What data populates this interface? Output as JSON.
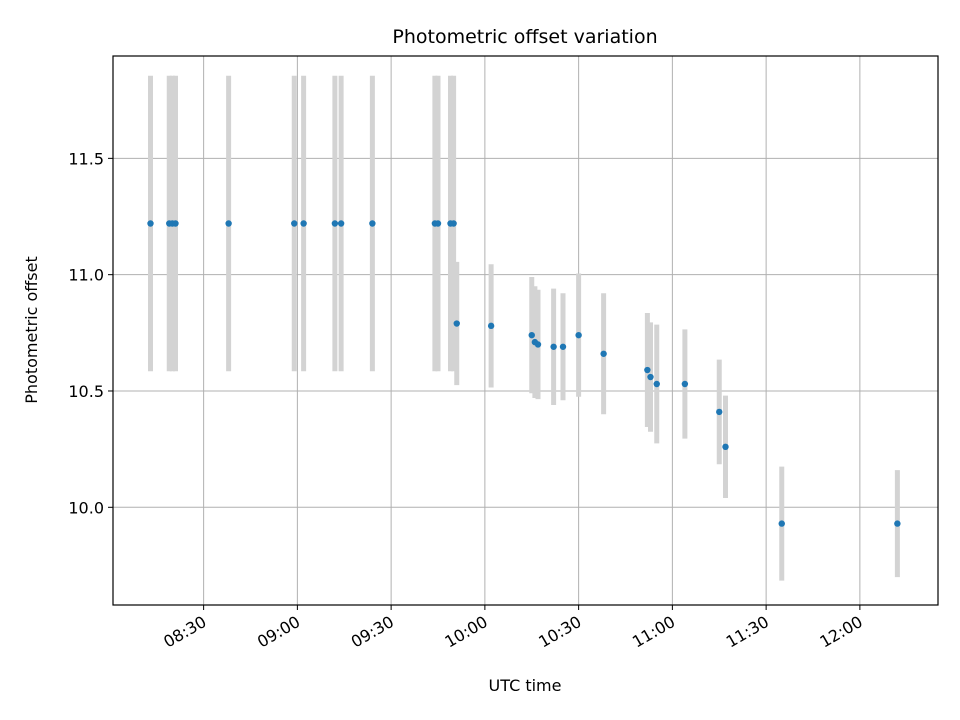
{
  "chart_data": {
    "type": "scatter",
    "title": "Photometric offset variation",
    "xlabel": "UTC time",
    "ylabel": "Photometric offset",
    "x_axis": {
      "kind": "time",
      "range": [
        "08:01",
        "12:25"
      ],
      "ticks": [
        "08:30",
        "09:00",
        "09:30",
        "10:00",
        "10:30",
        "11:00",
        "11:30",
        "12:00"
      ],
      "tick_rotation_deg": 30
    },
    "y_axis": {
      "range": [
        9.58,
        11.94
      ],
      "ticks": [
        10.0,
        10.5,
        11.0,
        11.5
      ],
      "tick_labels": [
        "10.0",
        "10.5",
        "11.0",
        "11.5"
      ]
    },
    "grid": true,
    "colors": {
      "points": "#1f77b4",
      "error_bars": "#d3d3d3",
      "grid": "#b0b0b0"
    },
    "series": [
      {
        "points": [
          {
            "x": "08:13",
            "y": 11.22,
            "err": 0.635
          },
          {
            "x": "08:19",
            "y": 11.22,
            "err": 0.635
          },
          {
            "x": "08:20",
            "y": 11.22,
            "err": 0.635
          },
          {
            "x": "08:21",
            "y": 11.22,
            "err": 0.635
          },
          {
            "x": "08:38",
            "y": 11.22,
            "err": 0.635
          },
          {
            "x": "08:59",
            "y": 11.22,
            "err": 0.635
          },
          {
            "x": "09:02",
            "y": 11.22,
            "err": 0.635
          },
          {
            "x": "09:12",
            "y": 11.22,
            "err": 0.635
          },
          {
            "x": "09:14",
            "y": 11.22,
            "err": 0.635
          },
          {
            "x": "09:24",
            "y": 11.22,
            "err": 0.635
          },
          {
            "x": "09:44",
            "y": 11.22,
            "err": 0.635
          },
          {
            "x": "09:45",
            "y": 11.22,
            "err": 0.635
          },
          {
            "x": "09:49",
            "y": 11.22,
            "err": 0.635
          },
          {
            "x": "09:50",
            "y": 11.22,
            "err": 0.635
          },
          {
            "x": "09:51",
            "y": 10.79,
            "err": 0.265
          },
          {
            "x": "10:02",
            "y": 10.78,
            "err": 0.265
          },
          {
            "x": "10:15",
            "y": 10.74,
            "err": 0.25
          },
          {
            "x": "10:16",
            "y": 10.71,
            "err": 0.24
          },
          {
            "x": "10:17",
            "y": 10.7,
            "err": 0.235
          },
          {
            "x": "10:22",
            "y": 10.69,
            "err": 0.25
          },
          {
            "x": "10:25",
            "y": 10.69,
            "err": 0.23
          },
          {
            "x": "10:30",
            "y": 10.74,
            "err": 0.265
          },
          {
            "x": "10:38",
            "y": 10.66,
            "err": 0.26
          },
          {
            "x": "10:52",
            "y": 10.59,
            "err": 0.245
          },
          {
            "x": "10:53",
            "y": 10.56,
            "err": 0.235
          },
          {
            "x": "10:55",
            "y": 10.53,
            "err": 0.255
          },
          {
            "x": "11:04",
            "y": 10.53,
            "err": 0.235
          },
          {
            "x": "11:15",
            "y": 10.41,
            "err": 0.225
          },
          {
            "x": "11:17",
            "y": 10.26,
            "err": 0.22
          },
          {
            "x": "11:35",
            "y": 9.93,
            "err": 0.245
          },
          {
            "x": "12:12",
            "y": 9.93,
            "err": 0.23
          }
        ]
      }
    ]
  }
}
